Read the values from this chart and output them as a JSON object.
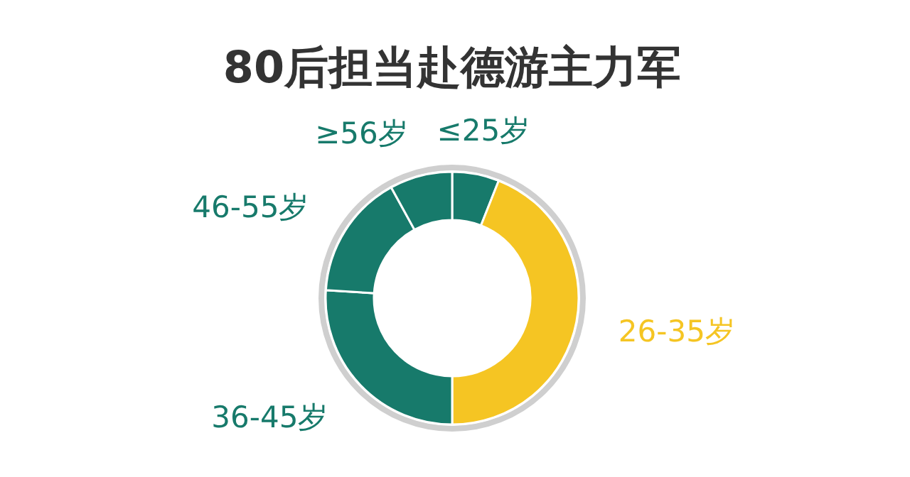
{
  "chart_data": {
    "type": "donut",
    "title": "80后担当赴德游主力军",
    "categories": [
      "≤25岁",
      "26-35岁",
      "36-45岁",
      "46-55岁",
      "≥56岁"
    ],
    "values": [
      6,
      44,
      26,
      16,
      8
    ],
    "colors": [
      "#177a6b",
      "#f5c523",
      "#177a6b",
      "#177a6b",
      "#177a6b"
    ]
  }
}
